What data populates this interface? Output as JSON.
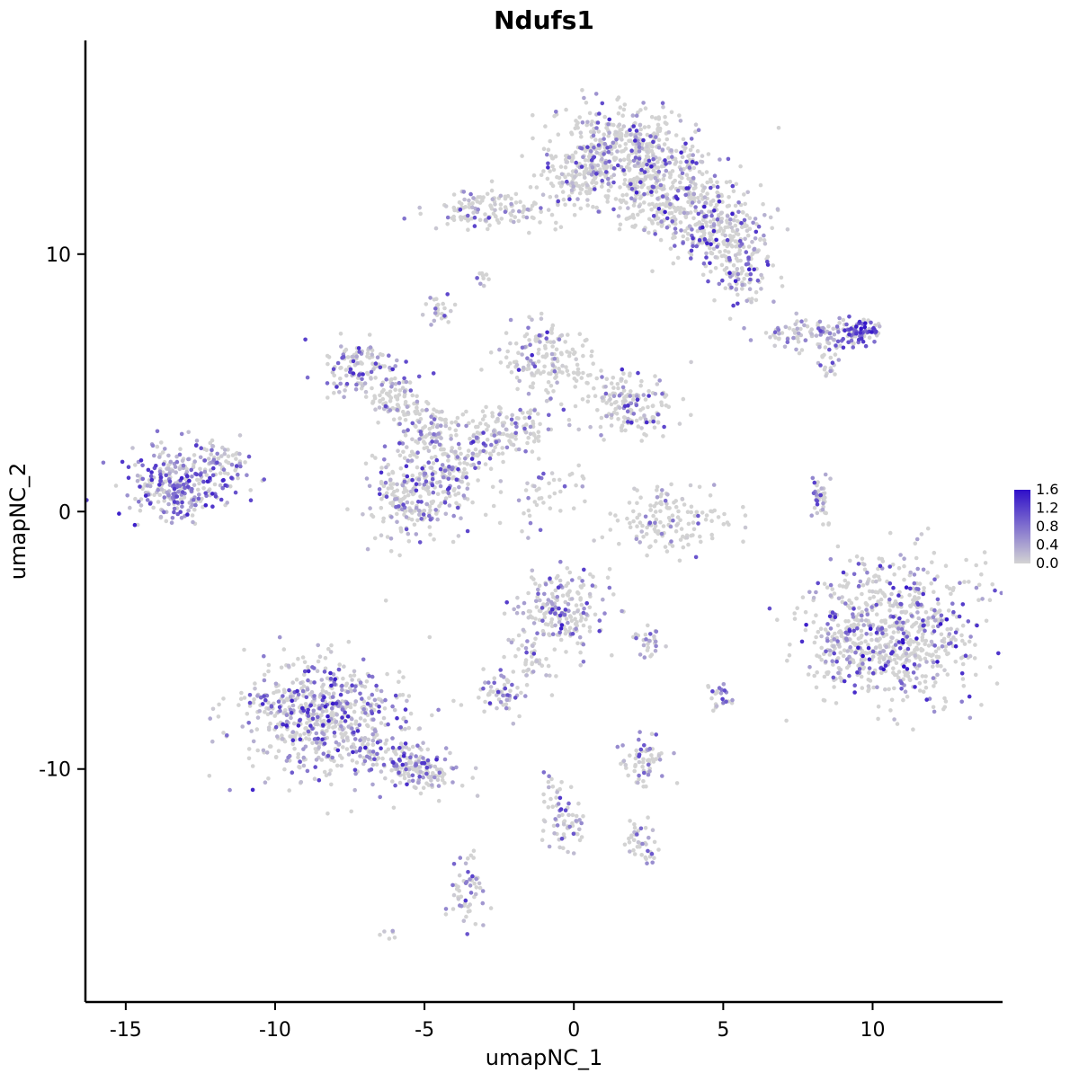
{
  "chart_data": {
    "type": "scatter",
    "title": "Ndufs1",
    "xlabel": "umapNC_1",
    "ylabel": "umapNC_2",
    "xlim": [
      -16.35,
      14.35
    ],
    "ylim": [
      -19.05,
      18.3
    ],
    "x_ticks": [
      -15,
      -10,
      -5,
      0,
      5,
      10
    ],
    "y_ticks": [
      -10,
      0,
      10
    ],
    "grid": false,
    "legend_position": "right",
    "color_scale": {
      "low_color": "#D3D3D3",
      "high_color": "#2F0FC9",
      "vmin": 0.0,
      "vmax": 1.6,
      "ticks": [
        "1.6",
        "1.2",
        "0.8",
        "0.4",
        "0.0"
      ],
      "tick_values": [
        1.6,
        1.2,
        0.8,
        0.4,
        0.0
      ]
    },
    "layout": {
      "point_radius": 2.3,
      "background": "#FFFFFF",
      "axis_color": "#000000"
    },
    "clusters": [
      {
        "name": "top-main",
        "cx": 1.5,
        "cy": 14.0,
        "sx": 1.25,
        "sy": 0.85,
        "n": 480,
        "frac": 0.3,
        "max": 1.4
      },
      {
        "name": "top-right-1",
        "cx": 3.1,
        "cy": 12.4,
        "sx": 1.1,
        "sy": 0.8,
        "n": 320,
        "frac": 0.32,
        "max": 1.5
      },
      {
        "name": "top-right-2",
        "cx": 4.8,
        "cy": 10.8,
        "sx": 0.85,
        "sy": 0.75,
        "n": 230,
        "frac": 0.35,
        "max": 1.5
      },
      {
        "name": "top-right-3",
        "cx": 5.6,
        "cy": 9.3,
        "sx": 0.5,
        "sy": 0.5,
        "n": 90,
        "frac": 0.4,
        "max": 1.5
      },
      {
        "name": "top-left-arm",
        "cx": -2.7,
        "cy": 11.7,
        "sx": 1.0,
        "sy": 0.35,
        "n": 140,
        "frac": 0.3,
        "max": 1.3
      },
      {
        "name": "top-notch",
        "cx": 0.2,
        "cy": 12.8,
        "sx": 0.5,
        "sy": 0.55,
        "n": 70,
        "frac": 0.25,
        "max": 1.2
      },
      {
        "name": "right-streak",
        "cx": 8.2,
        "cy": 6.9,
        "sx": 1.0,
        "sy": 0.3,
        "n": 120,
        "frac": 0.5,
        "max": 1.2,
        "rot": 5
      },
      {
        "name": "right-streak-dark",
        "cx": 9.6,
        "cy": 6.95,
        "sx": 0.35,
        "sy": 0.28,
        "n": 55,
        "frac": 0.85,
        "max": 1.6,
        "emin": 0.8
      },
      {
        "name": "right-streak-tail",
        "cx": 8.6,
        "cy": 5.9,
        "sx": 0.2,
        "sy": 0.35,
        "n": 22,
        "frac": 0.4,
        "max": 1.2
      },
      {
        "name": "web-1",
        "cx": -7.2,
        "cy": 5.5,
        "sx": 0.55,
        "sy": 0.6,
        "n": 120,
        "frac": 0.45,
        "max": 1.4
      },
      {
        "name": "web-2",
        "cx": -5.9,
        "cy": 4.3,
        "sx": 0.5,
        "sy": 0.5,
        "n": 90,
        "frac": 0.35,
        "max": 1.2
      },
      {
        "name": "web-3",
        "cx": -4.8,
        "cy": 3.1,
        "sx": 0.5,
        "sy": 0.55,
        "n": 85,
        "frac": 0.35,
        "max": 1.2
      },
      {
        "name": "web-tiny",
        "cx": -4.5,
        "cy": 7.8,
        "sx": 0.22,
        "sy": 0.3,
        "n": 26,
        "frac": 0.4,
        "max": 1.2
      },
      {
        "name": "web-4",
        "cx": -0.9,
        "cy": 5.8,
        "sx": 0.7,
        "sy": 0.7,
        "n": 160,
        "frac": 0.35,
        "max": 1.4
      },
      {
        "name": "web-5",
        "cx": 1.8,
        "cy": 4.2,
        "sx": 0.8,
        "sy": 0.65,
        "n": 170,
        "frac": 0.4,
        "max": 1.4
      },
      {
        "name": "web-6",
        "cx": -2.9,
        "cy": 2.7,
        "sx": 0.6,
        "sy": 0.6,
        "n": 110,
        "frac": 0.4,
        "max": 1.4
      },
      {
        "name": "web-7",
        "cx": -4.1,
        "cy": 1.2,
        "sx": 0.5,
        "sy": 0.8,
        "n": 100,
        "frac": 0.45,
        "max": 1.4
      },
      {
        "name": "web-bridge",
        "cx": -1.7,
        "cy": 3.3,
        "sx": 0.5,
        "sy": 0.45,
        "n": 55,
        "frac": 0.35,
        "max": 1.2
      },
      {
        "name": "web-tail",
        "cx": -1.1,
        "cy": 0.6,
        "sx": 0.55,
        "sy": 0.9,
        "n": 45,
        "frac": 0.3,
        "max": 1.2,
        "rot": -40
      },
      {
        "name": "far-left",
        "cx": -13.3,
        "cy": 1.1,
        "sx": 0.85,
        "sy": 0.7,
        "n": 300,
        "frac": 0.68,
        "max": 1.5,
        "emin": 0.15
      },
      {
        "name": "far-left-arm",
        "cx": -11.9,
        "cy": 2.0,
        "sx": 0.45,
        "sy": 0.4,
        "n": 55,
        "frac": 0.5,
        "max": 1.3
      },
      {
        "name": "mid-cluster",
        "cx": -5.5,
        "cy": 0.6,
        "sx": 0.7,
        "sy": 0.95,
        "n": 210,
        "frac": 0.4,
        "max": 1.4
      },
      {
        "name": "crescent",
        "cx": 3.2,
        "cy": -0.3,
        "sx": 1.0,
        "sy": 0.65,
        "n": 150,
        "frac": 0.15,
        "max": 1.1
      },
      {
        "name": "right-sliver",
        "cx": 8.25,
        "cy": 0.5,
        "sx": 0.18,
        "sy": 0.55,
        "n": 40,
        "frac": 0.5,
        "max": 1.2
      },
      {
        "name": "right-big",
        "cx": 10.8,
        "cy": -4.6,
        "sx": 1.55,
        "sy": 1.35,
        "n": 720,
        "frac": 0.35,
        "max": 1.6
      },
      {
        "name": "right-big-edge",
        "cx": 8.9,
        "cy": -5.2,
        "sx": 0.35,
        "sy": 0.8,
        "n": 60,
        "frac": 0.4,
        "max": 1.4
      },
      {
        "name": "center",
        "cx": -0.4,
        "cy": -3.9,
        "sx": 0.75,
        "sy": 0.85,
        "n": 210,
        "frac": 0.45,
        "max": 1.5
      },
      {
        "name": "center-tail",
        "cx": -1.4,
        "cy": -5.9,
        "sx": 0.3,
        "sy": 0.7,
        "n": 35,
        "frac": 0.3,
        "max": 1.2,
        "rot": 25
      },
      {
        "name": "small-left-of-center",
        "cx": -2.4,
        "cy": -7.1,
        "sx": 0.35,
        "sy": 0.4,
        "n": 60,
        "frac": 0.5,
        "max": 1.3
      },
      {
        "name": "tiny-mid-right",
        "cx": 2.5,
        "cy": -5.1,
        "sx": 0.25,
        "sy": 0.3,
        "n": 28,
        "frac": 0.5,
        "max": 1.3
      },
      {
        "name": "tiny-right-low",
        "cx": 4.9,
        "cy": -7.2,
        "sx": 0.2,
        "sy": 0.35,
        "n": 26,
        "frac": 0.45,
        "max": 1.3
      },
      {
        "name": "bottom-left",
        "cx": -8.4,
        "cy": -8.0,
        "sx": 1.45,
        "sy": 1.15,
        "n": 640,
        "frac": 0.5,
        "max": 1.5
      },
      {
        "name": "bottom-left-arm",
        "cx": -5.4,
        "cy": -9.9,
        "sx": 0.85,
        "sy": 0.5,
        "n": 170,
        "frac": 0.5,
        "max": 1.4,
        "rot": -15
      },
      {
        "name": "bottom-small-1",
        "cx": 2.3,
        "cy": -9.7,
        "sx": 0.4,
        "sy": 0.45,
        "n": 65,
        "frac": 0.45,
        "max": 1.4
      },
      {
        "name": "bottom-small-2",
        "cx": -0.3,
        "cy": -12.3,
        "sx": 0.35,
        "sy": 0.6,
        "n": 50,
        "frac": 0.45,
        "max": 1.4
      },
      {
        "name": "bottom-trail",
        "cx": -0.7,
        "cy": -10.8,
        "sx": 0.2,
        "sy": 0.55,
        "n": 20,
        "frac": 0.3,
        "max": 1.0
      },
      {
        "name": "bottom-small-3",
        "cx": 2.3,
        "cy": -12.9,
        "sx": 0.3,
        "sy": 0.45,
        "n": 42,
        "frac": 0.45,
        "max": 1.3
      },
      {
        "name": "bottom-small-4",
        "cx": -3.5,
        "cy": -14.9,
        "sx": 0.3,
        "sy": 0.75,
        "n": 55,
        "frac": 0.5,
        "max": 1.4
      },
      {
        "name": "tiny-bottom",
        "cx": -6.2,
        "cy": -16.4,
        "sx": 0.15,
        "sy": 0.15,
        "n": 6,
        "frac": 0.3,
        "max": 0.8
      },
      {
        "name": "tiny-upper-mid",
        "cx": -3.0,
        "cy": 9.1,
        "sx": 0.18,
        "sy": 0.25,
        "n": 10,
        "frac": 0.3,
        "max": 1.0
      }
    ]
  }
}
